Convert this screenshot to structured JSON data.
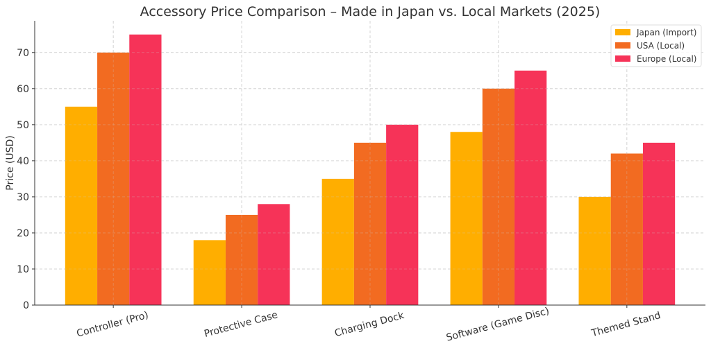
{
  "chart_data": {
    "type": "bar",
    "title": "Accessory Price Comparison – Made in Japan vs. Local Markets (2025)",
    "xlabel": "",
    "ylabel": "Price (USD)",
    "ylim": [
      0,
      78.8
    ],
    "yticks": [
      0,
      10,
      20,
      30,
      40,
      50,
      60,
      70
    ],
    "grid": true,
    "legend_position": "top-right",
    "categories": [
      "Controller (Pro)",
      "Protective Case",
      "Charging Dock",
      "Software (Game Disc)",
      "Themed Stand"
    ],
    "series": [
      {
        "name": "Japan (Import)",
        "color": "#FFAE00",
        "values": [
          55,
          18,
          35,
          48,
          30
        ]
      },
      {
        "name": "USA (Local)",
        "color": "#F26B21",
        "values": [
          70,
          25,
          45,
          60,
          42
        ]
      },
      {
        "name": "Europe (Local)",
        "color": "#F63358",
        "values": [
          75,
          28,
          50,
          65,
          45
        ]
      }
    ]
  }
}
